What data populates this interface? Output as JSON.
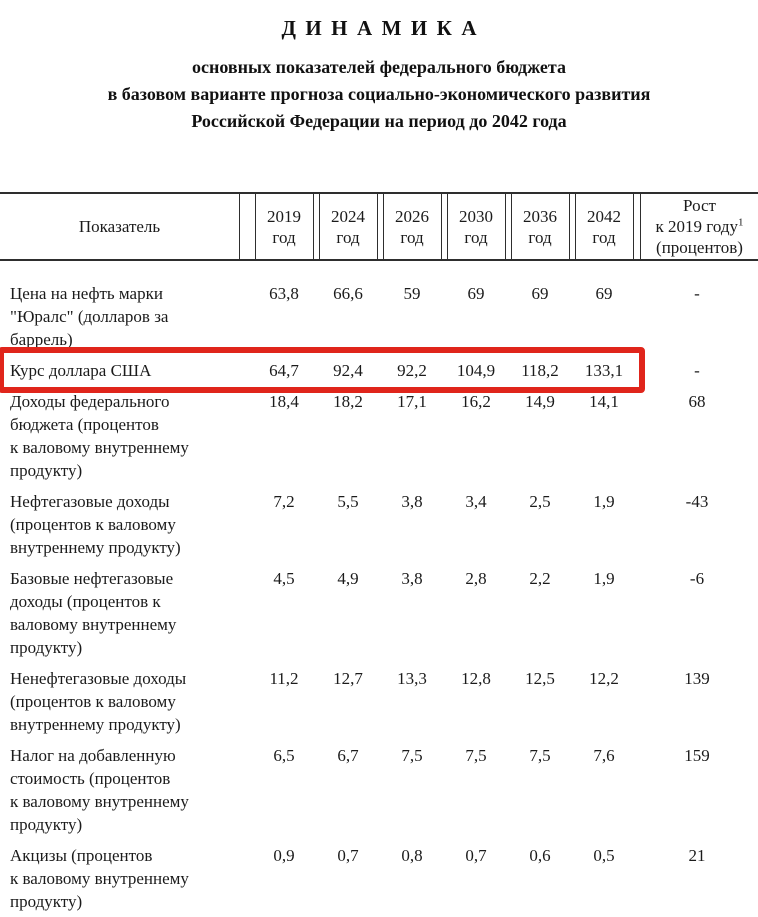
{
  "title": "ДИНАМИКА",
  "subtitle": {
    "line1": "основных показателей федерального бюджета",
    "line2": "в базовом варианте прогноза социально-экономического развития",
    "line3": "Российской Федерации на период до 2042 года"
  },
  "table": {
    "header": {
      "indicator": "Показатель",
      "years": [
        "2019\nгод",
        "2024\nгод",
        "2026\nгод",
        "2030\nгод",
        "2036\nгод",
        "2042\nгод"
      ],
      "growth": {
        "line1": "Рост",
        "line2": "к 2019 году",
        "sup": "1",
        "line3": "(процентов)"
      }
    },
    "rows": [
      {
        "indicator": "Цена на нефть марки\n\"Юралс\" (долларов за\nбаррель)",
        "values": [
          "63,8",
          "66,6",
          "59",
          "69",
          "69",
          "69"
        ],
        "growth": "-"
      },
      {
        "indicator": "Курс доллара США",
        "values": [
          "64,7",
          "92,4",
          "92,2",
          "104,9",
          "118,2",
          "133,1"
        ],
        "growth": "-",
        "highlighted": true
      },
      {
        "indicator": "Доходы федерального\nбюджета (процентов\nк валовому внутреннему\nпродукту)",
        "values": [
          "18,4",
          "18,2",
          "17,1",
          "16,2",
          "14,9",
          "14,1"
        ],
        "growth": "68"
      },
      {
        "indicator": "Нефтегазовые доходы\n(процентов к валовому\nвнутреннему продукту)",
        "values": [
          "7,2",
          "5,5",
          "3,8",
          "3,4",
          "2,5",
          "1,9"
        ],
        "growth": "-43"
      },
      {
        "indicator": "Базовые нефтегазовые\nдоходы (процентов к\nваловому внутреннему\nпродукту)",
        "values": [
          "4,5",
          "4,9",
          "3,8",
          "2,8",
          "2,2",
          "1,9"
        ],
        "growth": "-6"
      },
      {
        "indicator": "Ненефтегазовые доходы\n(процентов к валовому\nвнутреннему продукту)",
        "values": [
          "11,2",
          "12,7",
          "13,3",
          "12,8",
          "12,5",
          "12,2"
        ],
        "growth": "139"
      },
      {
        "indicator": "Налог на добавленную\nстоимость (процентов\nк валовому внутреннему\nпродукту)",
        "values": [
          "6,5",
          "6,7",
          "7,5",
          "7,5",
          "7,5",
          "7,6"
        ],
        "growth": "159"
      },
      {
        "indicator": "Акцизы (процентов\nк валовому внутреннему\nпродукту)",
        "values": [
          "0,9",
          "0,7",
          "0,8",
          "0,7",
          "0,6",
          "0,5"
        ],
        "growth": "21"
      }
    ]
  },
  "annotation": {
    "highlight_color": "#e0251b",
    "highlighted_row": "Курс доллара США"
  }
}
